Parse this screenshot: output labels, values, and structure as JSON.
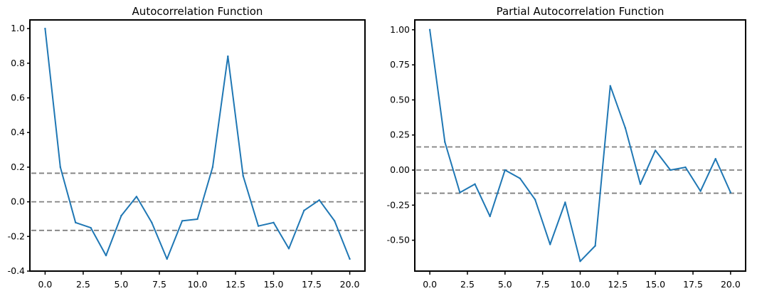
{
  "chart_data": [
    {
      "type": "line",
      "title": "Autocorrelation Function",
      "xlabel": "",
      "ylabel": "",
      "xlim": [
        -1,
        21
      ],
      "ylim": [
        -0.4,
        1.05
      ],
      "x_ticks": [
        0,
        2.5,
        5,
        7.5,
        10,
        12.5,
        15,
        17.5,
        20
      ],
      "x_tick_labels": [
        "0.0",
        "2.5",
        "5.0",
        "7.5",
        "10.0",
        "12.5",
        "15.0",
        "17.5",
        "20.0"
      ],
      "y_ticks": [
        -0.4,
        -0.2,
        0.0,
        0.2,
        0.4,
        0.6,
        0.8,
        1.0
      ],
      "y_tick_labels": [
        "-0.4",
        "-0.2",
        "0.0",
        "0.2",
        "0.4",
        "0.6",
        "0.8",
        "1.0"
      ],
      "series": [
        {
          "x": [
            0,
            1,
            2,
            3,
            4,
            5,
            6,
            7,
            8,
            9,
            10,
            11,
            12,
            13,
            14,
            15,
            16,
            17,
            18,
            19,
            20
          ],
          "values": [
            1.0,
            0.2,
            -0.12,
            -0.15,
            -0.31,
            -0.08,
            0.03,
            -0.12,
            -0.33,
            -0.11,
            -0.1,
            0.2,
            0.84,
            0.15,
            -0.14,
            -0.12,
            -0.27,
            -0.05,
            0.01,
            -0.11,
            -0.33
          ],
          "color": "#1f77b4"
        }
      ],
      "reference_lines": [
        0.165,
        0.0,
        -0.165
      ],
      "reference_line_color": "#808080",
      "grid": false
    },
    {
      "type": "line",
      "title": "Partial Autocorrelation Function",
      "xlabel": "",
      "ylabel": "",
      "xlim": [
        -1,
        21
      ],
      "ylim": [
        -0.72,
        1.07
      ],
      "x_ticks": [
        0,
        2.5,
        5,
        7.5,
        10,
        12.5,
        15,
        17.5,
        20
      ],
      "x_tick_labels": [
        "0.0",
        "2.5",
        "5.0",
        "7.5",
        "10.0",
        "12.5",
        "15.0",
        "17.5",
        "20.0"
      ],
      "y_ticks": [
        -0.5,
        -0.25,
        0.0,
        0.25,
        0.5,
        0.75,
        1.0
      ],
      "y_tick_labels": [
        "-0.50",
        "-0.25",
        "0.00",
        "0.25",
        "0.50",
        "0.75",
        "1.00"
      ],
      "series": [
        {
          "x": [
            0,
            1,
            2,
            3,
            4,
            5,
            6,
            7,
            8,
            9,
            10,
            11,
            12,
            13,
            14,
            15,
            16,
            17,
            18,
            19,
            20
          ],
          "values": [
            1.0,
            0.2,
            -0.16,
            -0.1,
            -0.33,
            0.0,
            -0.06,
            -0.21,
            -0.53,
            -0.23,
            -0.65,
            -0.54,
            0.6,
            0.3,
            -0.1,
            0.14,
            0.0,
            0.02,
            -0.15,
            0.08,
            -0.16
          ],
          "color": "#1f77b4"
        }
      ],
      "reference_lines": [
        0.165,
        0.0,
        -0.165
      ],
      "reference_line_color": "#808080",
      "grid": false
    }
  ]
}
